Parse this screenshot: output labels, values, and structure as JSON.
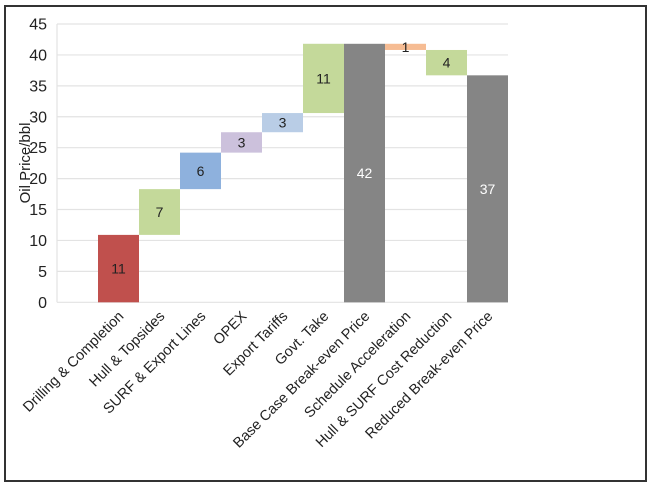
{
  "chart_data": {
    "type": "waterfall",
    "title": "",
    "xlabel": "",
    "ylabel": "Oil Price/bbl",
    "ylim": [
      0,
      45
    ],
    "yticks": [
      0,
      5,
      10,
      15,
      20,
      25,
      30,
      35,
      40,
      45
    ],
    "grid": true,
    "legend": "none",
    "categories": [
      "",
      "Drilling & Completion",
      "Hull & Topsides",
      "SURF & Export Lines",
      "OPEX",
      "Export Tariffs",
      "Govt. Take",
      "Base Case Break-even Price",
      "Schedule Acceleration",
      "Hull & SURF Cost Reduction",
      "Reduced Break-even Price"
    ],
    "bars": [
      {
        "category": "Drilling & Completion",
        "bottom": 0,
        "top": 10.9,
        "label": "11",
        "color": "#c0504d",
        "labelColor": "#222"
      },
      {
        "category": "Hull & Topsides",
        "bottom": 10.9,
        "top": 18.3,
        "label": "7",
        "color": "#c4d99a",
        "labelColor": "#222"
      },
      {
        "category": "SURF & Export Lines",
        "bottom": 18.3,
        "top": 24.2,
        "label": "6",
        "color": "#8eb1dd",
        "labelColor": "#222"
      },
      {
        "category": "OPEX",
        "bottom": 24.2,
        "top": 27.5,
        "label": "3",
        "color": "#ccc1dc",
        "labelColor": "#222"
      },
      {
        "category": "Export Tariffs",
        "bottom": 27.5,
        "top": 30.6,
        "label": "3",
        "color": "#b9cde6",
        "labelColor": "#222"
      },
      {
        "category": "Govt. Take",
        "bottom": 30.6,
        "top": 41.8,
        "label": "11",
        "color": "#c4d99a",
        "labelColor": "#222"
      },
      {
        "category": "Base Case Break-even Price",
        "bottom": 0,
        "top": 41.8,
        "label": "42",
        "color": "#858585",
        "labelColor": "#fff"
      },
      {
        "category": "Schedule Acceleration",
        "bottom": 40.8,
        "top": 41.8,
        "label": "1",
        "color": "#f6bc93",
        "labelColor": "#222"
      },
      {
        "category": "Hull & SURF Cost Reduction",
        "bottom": 36.7,
        "top": 40.8,
        "label": "4",
        "color": "#c4d99a",
        "labelColor": "#222"
      },
      {
        "category": "Reduced Break-even Price",
        "bottom": 0,
        "top": 36.7,
        "label": "37",
        "color": "#858585",
        "labelColor": "#fff"
      }
    ]
  }
}
